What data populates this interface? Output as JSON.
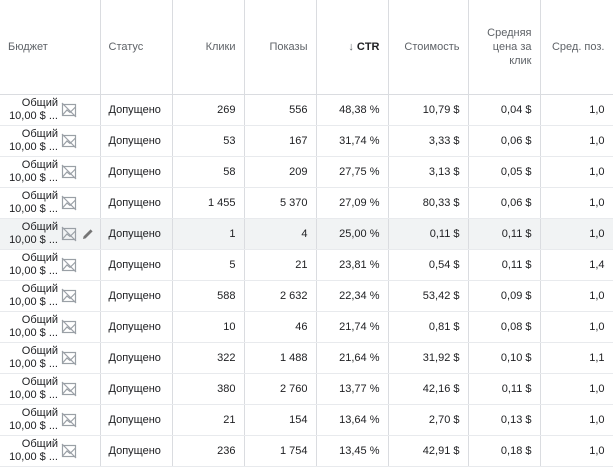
{
  "headers": {
    "budget": "Бюджет",
    "status": "Статус",
    "clicks": "Клики",
    "impressions": "Показы",
    "ctr": "CTR",
    "cost": "Стоимость",
    "avg_cpc": "Средняя цена за клик",
    "avg_pos": "Сред. поз."
  },
  "sort_arrow": "↓",
  "rows": [
    {
      "budget_line1": "Общий",
      "budget_line2": "10,00 $ ...",
      "status": "Допущено",
      "clicks": "269",
      "impressions": "556",
      "ctr": "48,38 %",
      "cost": "10,79 $",
      "avg_cpc": "0,04 $",
      "avg_pos": "1,0"
    },
    {
      "budget_line1": "Общий",
      "budget_line2": "10,00 $ ...",
      "status": "Допущено",
      "clicks": "53",
      "impressions": "167",
      "ctr": "31,74 %",
      "cost": "3,33 $",
      "avg_cpc": "0,06 $",
      "avg_pos": "1,0"
    },
    {
      "budget_line1": "Общий",
      "budget_line2": "10,00 $ ...",
      "status": "Допущено",
      "clicks": "58",
      "impressions": "209",
      "ctr": "27,75 %",
      "cost": "3,13 $",
      "avg_cpc": "0,05 $",
      "avg_pos": "1,0"
    },
    {
      "budget_line1": "Общий",
      "budget_line2": "10,00 $ ...",
      "status": "Допущено",
      "clicks": "1 455",
      "impressions": "5 370",
      "ctr": "27,09 %",
      "cost": "80,33 $",
      "avg_cpc": "0,06 $",
      "avg_pos": "1,0"
    },
    {
      "budget_line1": "Общий",
      "budget_line2": "10,00 $ ...",
      "status": "Допущено",
      "clicks": "1",
      "impressions": "4",
      "ctr": "25,00 %",
      "cost": "0,11 $",
      "avg_cpc": "0,11 $",
      "avg_pos": "1,0",
      "highlighted": true
    },
    {
      "budget_line1": "Общий",
      "budget_line2": "10,00 $ ...",
      "status": "Допущено",
      "clicks": "5",
      "impressions": "21",
      "ctr": "23,81 %",
      "cost": "0,54 $",
      "avg_cpc": "0,11 $",
      "avg_pos": "1,4"
    },
    {
      "budget_line1": "Общий",
      "budget_line2": "10,00 $ ...",
      "status": "Допущено",
      "clicks": "588",
      "impressions": "2 632",
      "ctr": "22,34 %",
      "cost": "53,42 $",
      "avg_cpc": "0,09 $",
      "avg_pos": "1,0"
    },
    {
      "budget_line1": "Общий",
      "budget_line2": "10,00 $ ...",
      "status": "Допущено",
      "clicks": "10",
      "impressions": "46",
      "ctr": "21,74 %",
      "cost": "0,81 $",
      "avg_cpc": "0,08 $",
      "avg_pos": "1,0"
    },
    {
      "budget_line1": "Общий",
      "budget_line2": "10,00 $ ...",
      "status": "Допущено",
      "clicks": "322",
      "impressions": "1 488",
      "ctr": "21,64 %",
      "cost": "31,92 $",
      "avg_cpc": "0,10 $",
      "avg_pos": "1,1"
    },
    {
      "budget_line1": "Общий",
      "budget_line2": "10,00 $ ...",
      "status": "Допущено",
      "clicks": "380",
      "impressions": "2 760",
      "ctr": "13,77 %",
      "cost": "42,16 $",
      "avg_cpc": "0,11 $",
      "avg_pos": "1,0"
    },
    {
      "budget_line1": "Общий",
      "budget_line2": "10,00 $ ...",
      "status": "Допущено",
      "clicks": "21",
      "impressions": "154",
      "ctr": "13,64 %",
      "cost": "2,70 $",
      "avg_cpc": "0,13 $",
      "avg_pos": "1,0"
    },
    {
      "budget_line1": "Общий",
      "budget_line2": "10,00 $ ...",
      "status": "Допущено",
      "clicks": "236",
      "impressions": "1 754",
      "ctr": "13,45 %",
      "cost": "42,91 $",
      "avg_cpc": "0,18 $",
      "avg_pos": "1,0"
    }
  ],
  "colors": {
    "header_text": "#5f6368",
    "grid_line": "#dadce0",
    "highlight_row": "#f1f3f4",
    "icon": "#9aa0a6"
  },
  "icons": {
    "budget_chart": "chart-crossed-icon",
    "edit": "pencil-edit-icon"
  }
}
